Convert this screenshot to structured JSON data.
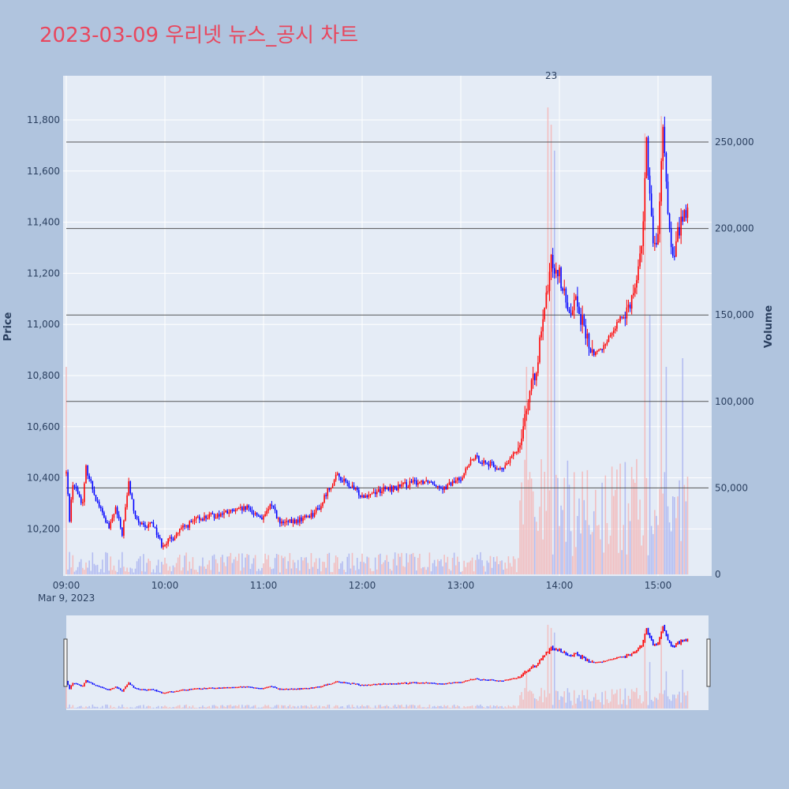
{
  "title": "2023-03-09 우리넷 뉴스_공시 차트",
  "colors": {
    "background": "#b0c4de",
    "plot_bg": "#e5ecf6",
    "grid": "#ffffff",
    "up": "#ff0000",
    "down": "#0000ff",
    "vol_up": "#f4b5b5",
    "vol_down": "#aab4f0",
    "title": "#e8475e",
    "hline": "#555555"
  },
  "chart_data": {
    "type": "candlestick",
    "ylabel": "Price",
    "y2label": "Volume",
    "ylim": [
      10020,
      11960
    ],
    "y2lim": [
      0,
      285000
    ],
    "yticks": [
      "10,200",
      "10,400",
      "10,600",
      "10,800",
      "11,000",
      "11,200",
      "11,400",
      "11,600",
      "11,800"
    ],
    "y2ticks": [
      "0",
      "50,000",
      "100,000",
      "150,000",
      "200,000",
      "250,000"
    ],
    "xticks": [
      "09:00",
      "10:00",
      "11:00",
      "12:00",
      "13:00",
      "14:00",
      "15:00"
    ],
    "x_subtitle": "Mar 9, 2023",
    "annotation": {
      "text": "23",
      "time": "13:55"
    },
    "volume_hlines": [
      50000,
      100000,
      150000,
      200000,
      250000
    ],
    "price_keypoints": [
      [
        "09:00",
        10420
      ],
      [
        "09:02",
        10240
      ],
      [
        "09:04",
        10380
      ],
      [
        "09:10",
        10300
      ],
      [
        "09:12",
        10440
      ],
      [
        "09:18",
        10320
      ],
      [
        "09:26",
        10200
      ],
      [
        "09:30",
        10280
      ],
      [
        "09:34",
        10180
      ],
      [
        "09:38",
        10380
      ],
      [
        "09:42",
        10240
      ],
      [
        "09:48",
        10200
      ],
      [
        "09:52",
        10230
      ],
      [
        "09:58",
        10140
      ],
      [
        "10:04",
        10160
      ],
      [
        "10:10",
        10200
      ],
      [
        "10:20",
        10240
      ],
      [
        "10:35",
        10260
      ],
      [
        "10:50",
        10280
      ],
      [
        "11:00",
        10240
      ],
      [
        "11:05",
        10300
      ],
      [
        "11:10",
        10220
      ],
      [
        "11:20",
        10230
      ],
      [
        "11:30",
        10260
      ],
      [
        "11:35",
        10290
      ],
      [
        "11:38",
        10340
      ],
      [
        "11:45",
        10410
      ],
      [
        "11:50",
        10380
      ],
      [
        "12:00",
        10330
      ],
      [
        "12:10",
        10350
      ],
      [
        "12:20",
        10360
      ],
      [
        "12:30",
        10380
      ],
      [
        "12:40",
        10390
      ],
      [
        "12:50",
        10360
      ],
      [
        "13:00",
        10400
      ],
      [
        "13:08",
        10480
      ],
      [
        "13:15",
        10460
      ],
      [
        "13:25",
        10430
      ],
      [
        "13:30",
        10470
      ],
      [
        "13:35",
        10520
      ],
      [
        "13:40",
        10680
      ],
      [
        "13:45",
        10800
      ],
      [
        "13:50",
        11000
      ],
      [
        "13:55",
        11250
      ],
      [
        "14:00",
        11200
      ],
      [
        "14:05",
        11050
      ],
      [
        "14:10",
        11100
      ],
      [
        "14:15",
        10980
      ],
      [
        "14:20",
        10880
      ],
      [
        "14:25",
        10900
      ],
      [
        "14:30",
        10950
      ],
      [
        "14:35",
        11000
      ],
      [
        "14:40",
        11050
      ],
      [
        "14:45",
        11120
      ],
      [
        "14:50",
        11300
      ],
      [
        "14:53",
        11700
      ],
      [
        "14:57",
        11300
      ],
      [
        "15:00",
        11350
      ],
      [
        "15:03",
        11750
      ],
      [
        "15:06",
        11450
      ],
      [
        "15:09",
        11250
      ],
      [
        "15:12",
        11350
      ],
      [
        "15:15",
        11430
      ]
    ],
    "volume_spikes": [
      [
        "13:53",
        270000
      ],
      [
        "13:55",
        260000
      ],
      [
        "13:57",
        245000
      ],
      [
        "14:52",
        255000
      ],
      [
        "14:55",
        150000
      ],
      [
        "15:02",
        265000
      ],
      [
        "15:05",
        120000
      ],
      [
        "15:15",
        125000
      ],
      [
        "09:00",
        120000
      ],
      [
        "13:40",
        120000
      ]
    ]
  }
}
